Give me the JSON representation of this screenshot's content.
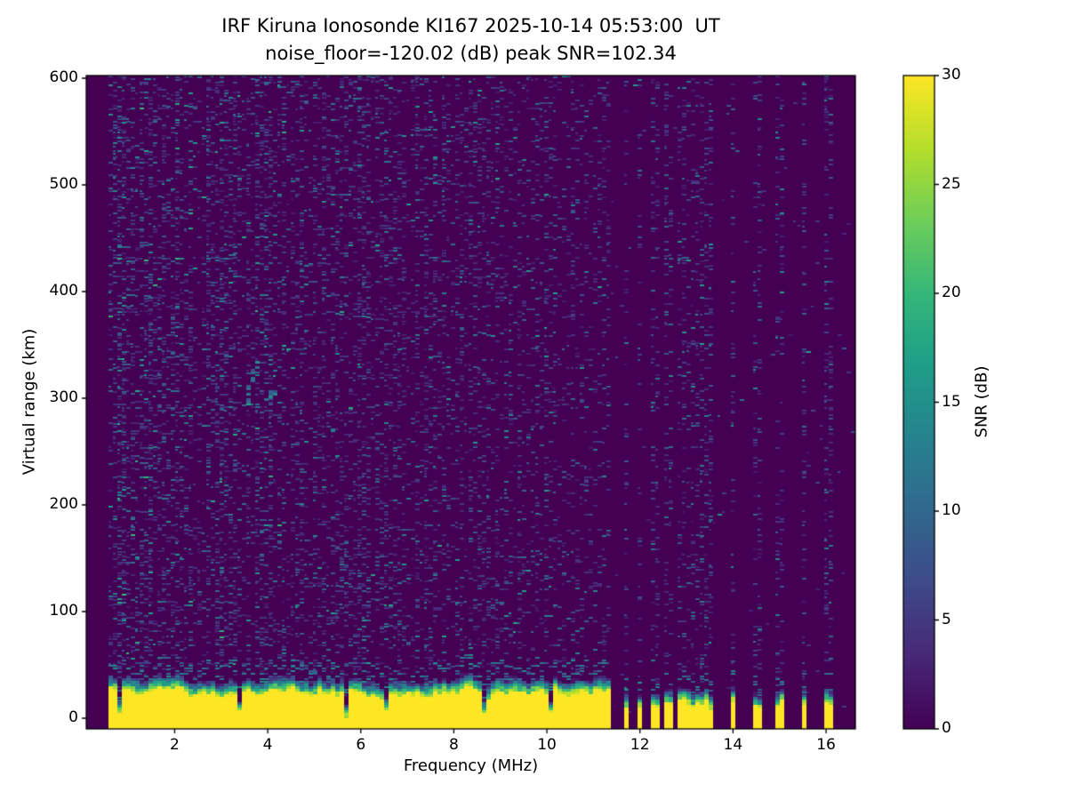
{
  "chart_data": {
    "type": "heatmap",
    "title_line1": "IRF Kiruna Ionosonde KI167 2025-10-14 05:53:00  UT",
    "title_line2": "noise_floor=-120.02 (dB) peak SNR=102.34",
    "xlabel": "Frequency (MHz)",
    "ylabel": "Virtual range (km)",
    "xlim": [
      0.1,
      16.63
    ],
    "ylim": [
      -10,
      602.5
    ],
    "xticks": [
      2,
      4,
      6,
      8,
      10,
      12,
      14,
      16
    ],
    "yticks": [
      0,
      100,
      200,
      300,
      400,
      500,
      600
    ],
    "colorbar": {
      "label": "SNR (dB)",
      "ticks": [
        0,
        5,
        10,
        15,
        20,
        25,
        30
      ],
      "vmin": 0,
      "vmax": 30,
      "colormap": "viridis"
    },
    "colormap_stops": [
      "#440154",
      "#482878",
      "#3e4a89",
      "#31688e",
      "#26828e",
      "#1f9e89",
      "#35b779",
      "#6ece58",
      "#b5de2b",
      "#fde725"
    ],
    "background_value_color": "#440154",
    "max_value_color": "#fde725",
    "data_description": {
      "sweep_start_mhz": 0.55,
      "continuous_sweep_end_mhz": 11.4,
      "discrete_sounding_frequencies_mhz": [
        11.71,
        12.0,
        12.33,
        12.61,
        12.9,
        13.09,
        13.28,
        13.47,
        14.01,
        14.52,
        15.02,
        15.54,
        16.07
      ],
      "ground_return_band_km": [
        -10,
        40
      ],
      "echo_trace_points": [
        [
          3.55,
          296
        ],
        [
          3.58,
          303
        ],
        [
          3.62,
          310
        ],
        [
          3.66,
          317
        ],
        [
          3.71,
          324
        ],
        [
          3.76,
          330
        ],
        [
          3.81,
          334
        ],
        [
          3.97,
          300
        ],
        [
          4.03,
          303
        ],
        [
          4.1,
          301
        ],
        [
          4.18,
          305
        ]
      ],
      "noise_speckle_snr_db": [
        2,
        16
      ],
      "seed": 42
    }
  }
}
